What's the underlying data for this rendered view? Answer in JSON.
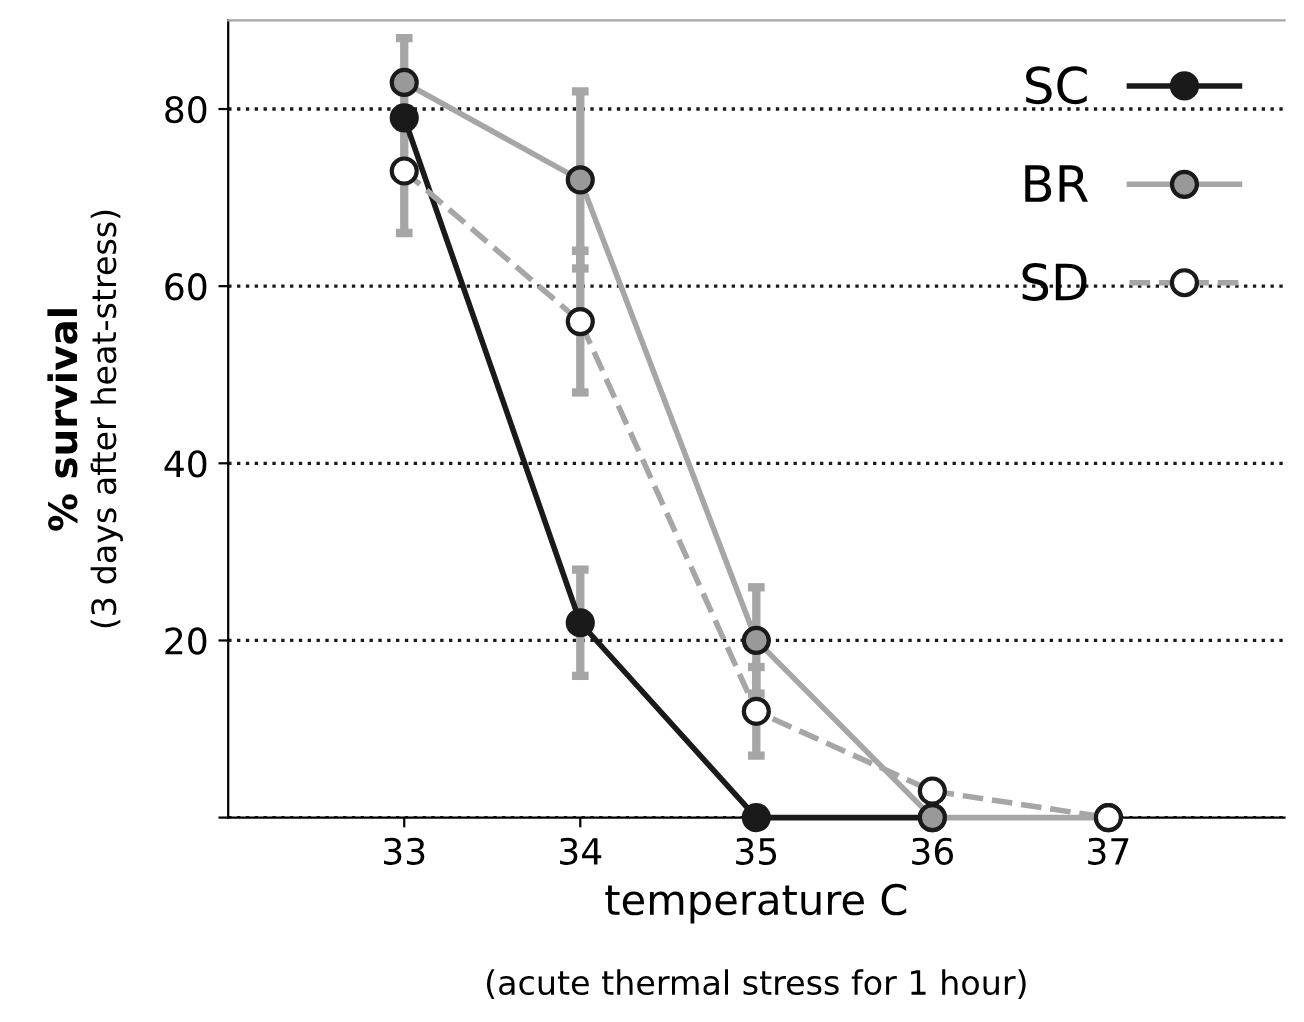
{
  "chart_data": {
    "type": "line",
    "xlabel": "temperature C",
    "ylabel": "% survival",
    "annotations": [
      "(3 days after heat-stress)",
      "(acute thermal stress for 1 hour)"
    ],
    "x": [
      33,
      34,
      35,
      36,
      37
    ],
    "series": [
      {
        "name": "SC",
        "color": "#1a1a1a",
        "values": [
          79,
          22,
          0,
          0,
          null
        ],
        "errors": [
          null,
          6,
          null,
          null,
          null
        ],
        "line_style": "solid"
      },
      {
        "name": "BR",
        "color": "#a6a6a6",
        "values": [
          83,
          72,
          20,
          0,
          0
        ],
        "errors": [
          5,
          10,
          6,
          null,
          null
        ],
        "line_style": "solid"
      },
      {
        "name": "SD",
        "color": "#a6a6a6",
        "values": [
          73,
          56,
          12,
          3,
          0
        ],
        "errors": [
          7,
          8,
          5,
          null,
          null
        ],
        "line_style": "dashed"
      }
    ],
    "xlim": [
      32,
      38
    ],
    "ylim": [
      0,
      90
    ],
    "xticks": [
      33,
      34,
      35,
      36,
      37
    ],
    "yticks": [
      {
        "value": 0,
        "label": null
      },
      20,
      40,
      60,
      80
    ],
    "grid": "y",
    "legend": "top right",
    "marker": "circle"
  }
}
